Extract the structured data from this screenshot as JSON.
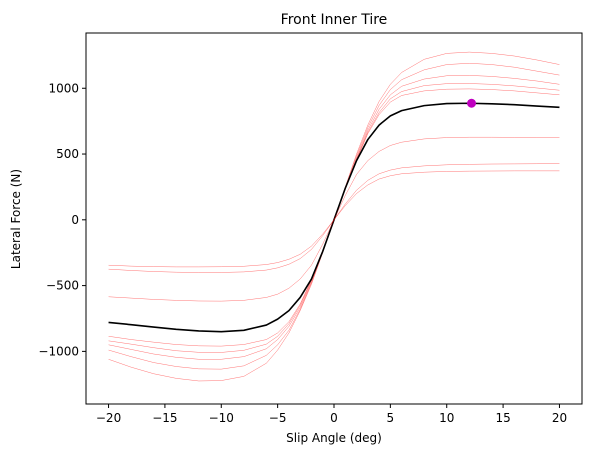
{
  "chart_data": {
    "type": "line",
    "title": "Front Inner Tire",
    "xlabel": "Slip Angle (deg)",
    "ylabel": "Lateral Force (N)",
    "xlim": [
      -22,
      22
    ],
    "ylim": [
      -1400,
      1420
    ],
    "xticks": [
      -20,
      -15,
      -10,
      -5,
      0,
      5,
      10,
      15,
      20
    ],
    "yticks": [
      -1000,
      -500,
      0,
      500,
      1000
    ],
    "xtick_labels": [
      "−20",
      "−15",
      "−10",
      "−5",
      "0",
      "5",
      "10",
      "15",
      "20"
    ],
    "ytick_labels": [
      "−1000",
      "−500",
      "0",
      "500",
      "1000"
    ],
    "grid": false,
    "x": [
      -20,
      -18,
      -16,
      -14,
      -12,
      -10,
      -8,
      -6,
      -5,
      -4,
      -3,
      -2,
      -1,
      0,
      1,
      2,
      3,
      4,
      5,
      6,
      8,
      10,
      12,
      14,
      16,
      18,
      20
    ],
    "series": [
      {
        "color": "#ff0000",
        "width": 0.5,
        "opacity": 0.55,
        "values": [
          -1060,
          -1120,
          -1170,
          -1205,
          -1225,
          -1222,
          -1190,
          -1090,
          -990,
          -860,
          -690,
          -490,
          -250,
          0,
          250,
          500,
          720,
          900,
          1030,
          1120,
          1220,
          1265,
          1275,
          1265,
          1245,
          1215,
          1180
        ]
      },
      {
        "color": "#ff0000",
        "width": 0.5,
        "opacity": 0.55,
        "values": [
          -990,
          -1040,
          -1085,
          -1115,
          -1133,
          -1135,
          -1110,
          -1030,
          -950,
          -840,
          -680,
          -480,
          -245,
          0,
          245,
          485,
          700,
          870,
          990,
          1065,
          1140,
          1180,
          1190,
          1180,
          1160,
          1130,
          1100
        ]
      },
      {
        "color": "#ff0000",
        "width": 0.5,
        "opacity": 0.55,
        "values": [
          -950,
          -985,
          -1020,
          -1045,
          -1060,
          -1060,
          -1040,
          -980,
          -910,
          -810,
          -665,
          -470,
          -240,
          0,
          240,
          470,
          680,
          840,
          950,
          1015,
          1070,
          1095,
          1098,
          1090,
          1075,
          1055,
          1030
        ]
      },
      {
        "color": "#ff0000",
        "width": 0.5,
        "opacity": 0.55,
        "values": [
          -920,
          -945,
          -972,
          -995,
          -1007,
          -1008,
          -992,
          -945,
          -885,
          -790,
          -650,
          -460,
          -235,
          0,
          235,
          460,
          665,
          815,
          920,
          975,
          1020,
          1035,
          1036,
          1030,
          1018,
          1002,
          985
        ]
      },
      {
        "color": "#ff0000",
        "width": 0.5,
        "opacity": 0.55,
        "values": [
          -885,
          -910,
          -930,
          -948,
          -958,
          -960,
          -948,
          -910,
          -860,
          -775,
          -640,
          -455,
          -230,
          0,
          230,
          455,
          655,
          800,
          895,
          945,
          980,
          993,
          995,
          990,
          980,
          965,
          950
        ]
      },
      {
        "color": "#000000",
        "width": 1.6,
        "opacity": 1,
        "values": [
          -780,
          -797,
          -815,
          -832,
          -845,
          -850,
          -840,
          -800,
          -755,
          -690,
          -590,
          -450,
          -240,
          0,
          240,
          450,
          610,
          720,
          790,
          830,
          868,
          884,
          886,
          882,
          875,
          865,
          855
        ]
      },
      {
        "color": "#ff0000",
        "width": 0.5,
        "opacity": 0.55,
        "values": [
          -585,
          -595,
          -605,
          -612,
          -617,
          -618,
          -612,
          -590,
          -565,
          -520,
          -450,
          -345,
          -185,
          0,
          185,
          345,
          450,
          520,
          565,
          590,
          615,
          625,
          628,
          628,
          627,
          625,
          625
        ]
      },
      {
        "color": "#ff0000",
        "width": 0.5,
        "opacity": 0.55,
        "values": [
          -375,
          -385,
          -393,
          -398,
          -400,
          -400,
          -396,
          -382,
          -365,
          -338,
          -295,
          -225,
          -120,
          0,
          120,
          225,
          300,
          350,
          378,
          395,
          410,
          418,
          422,
          424,
          425,
          426,
          428
        ]
      },
      {
        "color": "#ff0000",
        "width": 0.5,
        "opacity": 0.55,
        "values": [
          -345,
          -352,
          -356,
          -358,
          -358,
          -357,
          -353,
          -340,
          -325,
          -300,
          -262,
          -200,
          -108,
          0,
          108,
          200,
          265,
          310,
          335,
          350,
          362,
          368,
          370,
          371,
          372,
          372,
          372
        ]
      }
    ],
    "marker": {
      "x": 12.2,
      "y": 886,
      "color": "#bf00bf"
    }
  }
}
